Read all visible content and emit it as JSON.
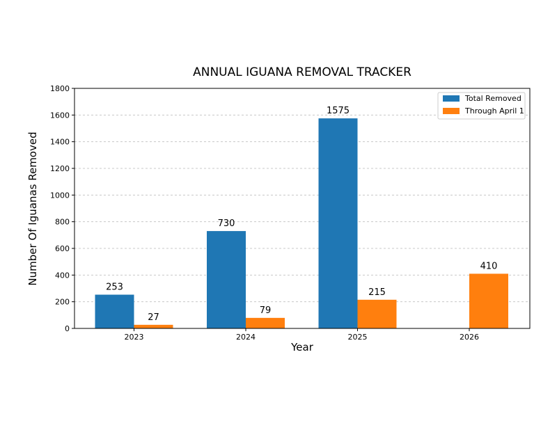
{
  "chart_data": {
    "type": "bar",
    "title": "ANNUAL IGUANA REMOVAL TRACKER",
    "xlabel": "Year",
    "ylabel": "Number Of Iguanas Removed",
    "categories": [
      "2023",
      "2024",
      "2025",
      "2026"
    ],
    "series": [
      {
        "name": "Total Removed",
        "color": "#1f77b4",
        "values": [
          253,
          730,
          1575,
          null
        ],
        "labels": [
          "253",
          "730",
          "1575",
          ""
        ]
      },
      {
        "name": "Through April 1",
        "color": "#ff7f0e",
        "values": [
          27,
          79,
          215,
          410
        ],
        "labels": [
          "27",
          "79",
          "215",
          "410"
        ]
      }
    ],
    "ylim": [
      0,
      1800
    ],
    "yticks": [
      "0",
      "200",
      "400",
      "600",
      "800",
      "1000",
      "1200",
      "1400",
      "1600",
      "1800"
    ],
    "grid": "horizontal dashed",
    "legend_position": "top-right"
  }
}
